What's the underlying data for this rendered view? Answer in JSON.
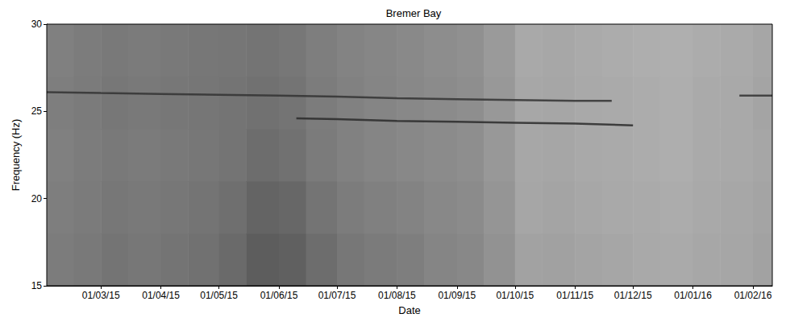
{
  "chart_data": {
    "type": "heatmap",
    "title": "Bremer Bay",
    "x_label": "Date",
    "y_label": "Frequency (Hz)",
    "xlim": [
      "2015-02-01",
      "2016-02-11"
    ],
    "xticks": [
      {
        "value": "2015-03-01",
        "label": "01/03/15"
      },
      {
        "value": "2015-04-01",
        "label": "01/04/15"
      },
      {
        "value": "2015-05-01",
        "label": "01/05/15"
      },
      {
        "value": "2015-06-01",
        "label": "01/06/15"
      },
      {
        "value": "2015-07-01",
        "label": "01/07/15"
      },
      {
        "value": "2015-08-01",
        "label": "01/08/15"
      },
      {
        "value": "2015-09-01",
        "label": "01/09/15"
      },
      {
        "value": "2015-10-01",
        "label": "01/10/15"
      },
      {
        "value": "2015-11-01",
        "label": "01/11/15"
      },
      {
        "value": "2015-12-01",
        "label": "01/12/15"
      },
      {
        "value": "2016-01-01",
        "label": "01/01/16"
      },
      {
        "value": "2016-02-01",
        "label": "01/02/16"
      }
    ],
    "ylim": [
      15,
      30
    ],
    "yticks": [
      15,
      20,
      25,
      30
    ],
    "level_range": [
      0,
      100
    ],
    "cells": {
      "time_edges": [
        "2015-02-01",
        "2015-02-15",
        "2015-03-01",
        "2015-03-15",
        "2015-04-01",
        "2015-04-15",
        "2015-05-01",
        "2015-05-15",
        "2015-06-01",
        "2015-06-15",
        "2015-07-01",
        "2015-07-15",
        "2015-08-01",
        "2015-08-15",
        "2015-09-01",
        "2015-09-15",
        "2015-10-01",
        "2015-10-15",
        "2015-11-01",
        "2015-11-15",
        "2015-12-01",
        "2015-12-15",
        "2016-01-01",
        "2016-01-15",
        "2016-02-01",
        "2016-02-11"
      ],
      "freq_edges": [
        15,
        18,
        21,
        24,
        27,
        30
      ],
      "levels": [
        [
          55,
          54,
          53,
          54,
          53
        ],
        [
          57,
          56,
          55,
          56,
          55
        ],
        [
          60,
          58,
          57,
          58,
          57
        ],
        [
          58,
          57,
          56,
          57,
          56
        ],
        [
          60,
          58,
          57,
          58,
          57
        ],
        [
          62,
          60,
          58,
          59,
          58
        ],
        [
          66,
          63,
          60,
          60,
          59
        ],
        [
          74,
          70,
          64,
          62,
          60
        ],
        [
          72,
          68,
          62,
          60,
          58
        ],
        [
          64,
          60,
          56,
          55,
          54
        ],
        [
          58,
          55,
          52,
          52,
          51
        ],
        [
          56,
          53,
          50,
          50,
          49
        ],
        [
          54,
          51,
          48,
          48,
          47
        ],
        [
          50,
          48,
          46,
          46,
          45
        ],
        [
          48,
          46,
          44,
          44,
          43
        ],
        [
          42,
          40,
          38,
          38,
          37
        ],
        [
          32,
          30,
          29,
          29,
          28
        ],
        [
          33,
          31,
          30,
          30,
          29
        ],
        [
          31,
          29,
          28,
          28,
          27
        ],
        [
          30,
          28,
          27,
          27,
          26
        ],
        [
          28,
          27,
          26,
          26,
          25
        ],
        [
          27,
          26,
          25,
          25,
          24
        ],
        [
          29,
          28,
          27,
          27,
          26
        ],
        [
          30,
          29,
          28,
          28,
          27
        ],
        [
          32,
          31,
          30,
          31,
          30
        ]
      ]
    },
    "series": [
      {
        "type": "line",
        "color": "#333333",
        "x": [
          "2015-02-01",
          "2015-03-01",
          "2015-04-01",
          "2015-05-01",
          "2015-06-01",
          "2015-07-01",
          "2015-08-01",
          "2015-09-01",
          "2015-10-01",
          "2015-11-01",
          "2015-11-20",
          "2015-12-20",
          "2016-01-25",
          "2016-02-11"
        ],
        "values": [
          26.1,
          26.05,
          26.0,
          25.95,
          25.9,
          25.85,
          25.75,
          25.7,
          25.65,
          25.6,
          25.6,
          null,
          25.9,
          25.9
        ]
      },
      {
        "type": "line",
        "color": "#2a2a2a",
        "x": [
          "2015-06-10",
          "2015-07-01",
          "2015-08-01",
          "2015-09-01",
          "2015-10-01",
          "2015-11-01",
          "2015-12-01"
        ],
        "values": [
          24.6,
          24.55,
          24.45,
          24.4,
          24.35,
          24.3,
          24.2
        ]
      }
    ]
  }
}
